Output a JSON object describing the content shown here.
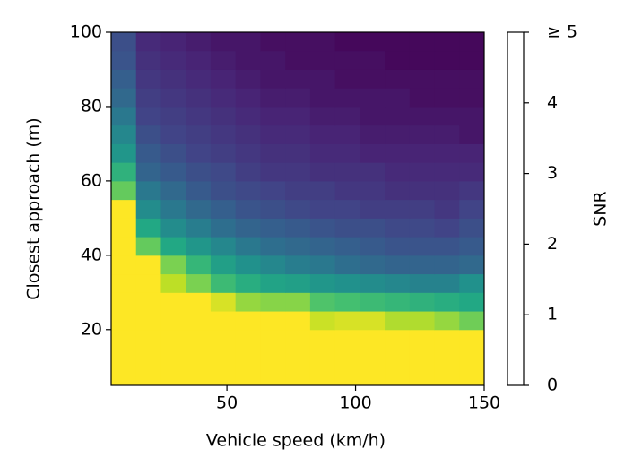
{
  "chart_data": {
    "type": "heatmap",
    "x_label": "Vehicle speed (km/h)",
    "y_label": "Closest approach (m)",
    "colorbar_label": "SNR",
    "colormap": "viridis",
    "xlim": [
      5,
      150
    ],
    "ylim": [
      5,
      100
    ],
    "xticks": [
      50,
      100,
      150
    ],
    "yticks": [
      20,
      40,
      60,
      80,
      100
    ],
    "clim": [
      0,
      5
    ],
    "cticks": [
      0,
      1,
      2,
      3,
      4,
      {
        "value": 5,
        "label": "≥ 5"
      }
    ],
    "z": [
      [
        5,
        5,
        5,
        5,
        5,
        5,
        5,
        5,
        5,
        5,
        5,
        5,
        5,
        5,
        5
      ],
      [
        5,
        5,
        5,
        5,
        5,
        5,
        5,
        5,
        5,
        5,
        5,
        5,
        5,
        5,
        5
      ],
      [
        5,
        5,
        5,
        5,
        5,
        5,
        5,
        5,
        5,
        5,
        5,
        5,
        5,
        5,
        5
      ],
      [
        5,
        5,
        5,
        5,
        5,
        5,
        5,
        5,
        4.6,
        4.7,
        4.7,
        4.4,
        4.4,
        4.2,
        3.9
      ],
      [
        5,
        5,
        5,
        5,
        4.7,
        4.2,
        4.1,
        4.1,
        3.6,
        3.5,
        3.4,
        3.3,
        3.2,
        3.1,
        3.0
      ],
      [
        5,
        5,
        4.5,
        4.0,
        3.4,
        3.1,
        2.9,
        2.8,
        2.6,
        2.5,
        2.4,
        2.3,
        2.2,
        2.2,
        2.5
      ],
      [
        5,
        5,
        4.0,
        3.3,
        2.8,
        2.5,
        2.3,
        2.1,
        2.0,
        1.8,
        1.7,
        1.6,
        1.6,
        1.6,
        1.7
      ],
      [
        5,
        3.8,
        3.0,
        2.6,
        2.3,
        2.0,
        1.8,
        1.7,
        1.6,
        1.5,
        1.4,
        1.3,
        1.3,
        1.3,
        1.4
      ],
      [
        5,
        3.0,
        2.4,
        2.1,
        1.8,
        1.6,
        1.5,
        1.4,
        1.3,
        1.2,
        1.2,
        1.1,
        1.1,
        1.0,
        1.2
      ],
      [
        5,
        2.4,
        2.0,
        1.7,
        1.5,
        1.3,
        1.2,
        1.1,
        1.0,
        1.0,
        0.9,
        0.9,
        0.9,
        0.8,
        1.0
      ],
      [
        3.8,
        2.0,
        1.7,
        1.4,
        1.2,
        1.1,
        1.0,
        0.9,
        0.9,
        0.8,
        0.8,
        0.7,
        0.7,
        0.7,
        0.8
      ],
      [
        3.2,
        1.6,
        1.4,
        1.2,
        1.1,
        0.9,
        0.8,
        0.8,
        0.7,
        0.7,
        0.7,
        0.6,
        0.6,
        0.6,
        0.6
      ],
      [
        2.6,
        1.4,
        1.2,
        1.0,
        0.9,
        0.8,
        0.7,
        0.7,
        0.6,
        0.6,
        0.5,
        0.5,
        0.5,
        0.5,
        0.5
      ],
      [
        2.3,
        1.2,
        1.0,
        0.9,
        0.8,
        0.7,
        0.6,
        0.6,
        0.5,
        0.5,
        0.4,
        0.4,
        0.4,
        0.4,
        0.3
      ],
      [
        2.0,
        1.0,
        0.9,
        0.8,
        0.7,
        0.6,
        0.5,
        0.5,
        0.4,
        0.4,
        0.3,
        0.3,
        0.3,
        0.3,
        0.3
      ],
      [
        1.7,
        0.9,
        0.8,
        0.7,
        0.6,
        0.5,
        0.4,
        0.4,
        0.3,
        0.3,
        0.3,
        0.3,
        0.2,
        0.2,
        0.2
      ],
      [
        1.5,
        0.8,
        0.7,
        0.6,
        0.5,
        0.4,
        0.3,
        0.3,
        0.3,
        0.2,
        0.2,
        0.2,
        0.2,
        0.2,
        0.2
      ],
      [
        1.3,
        0.7,
        0.6,
        0.5,
        0.4,
        0.3,
        0.3,
        0.2,
        0.2,
        0.2,
        0.2,
        0.1,
        0.1,
        0.1,
        0.1
      ],
      [
        1.2,
        0.6,
        0.5,
        0.4,
        0.3,
        0.3,
        0.2,
        0.2,
        0.2,
        0.1,
        0.1,
        0.1,
        0.1,
        0.1,
        0.1
      ]
    ]
  }
}
